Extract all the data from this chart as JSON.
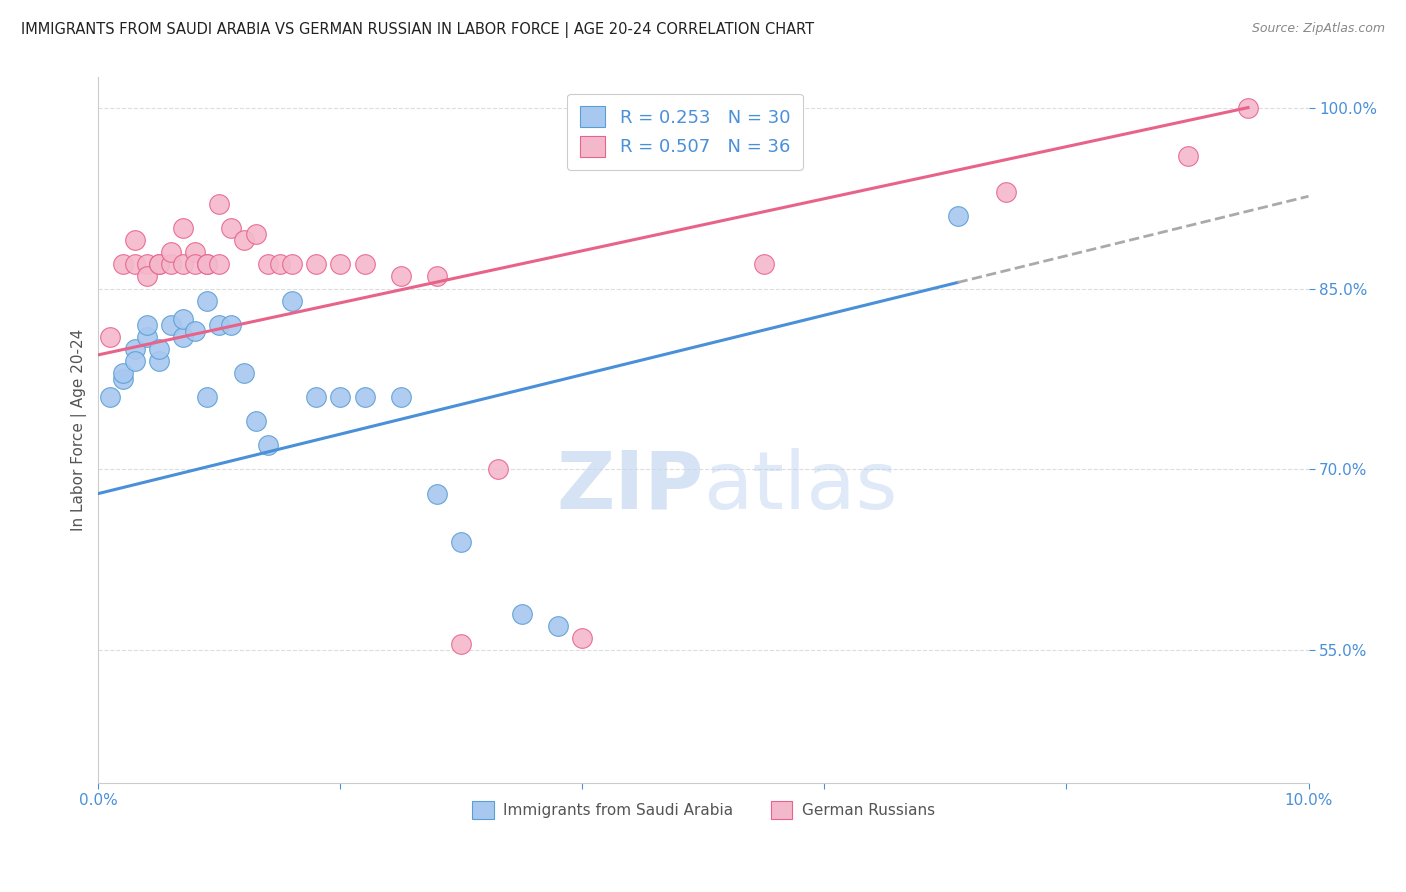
{
  "title": "IMMIGRANTS FROM SAUDI ARABIA VS GERMAN RUSSIAN IN LABOR FORCE | AGE 20-24 CORRELATION CHART",
  "source": "Source: ZipAtlas.com",
  "ylabel": "In Labor Force | Age 20-24",
  "legend_blue_r": "R = 0.253",
  "legend_blue_n": "N = 30",
  "legend_pink_r": "R = 0.507",
  "legend_pink_n": "N = 36",
  "legend_blue_label": "Immigrants from Saudi Arabia",
  "legend_pink_label": "German Russians",
  "xlim": [
    0.0,
    0.1
  ],
  "ylim": [
    0.44,
    1.025
  ],
  "xticks": [
    0.0,
    0.02,
    0.04,
    0.06,
    0.08,
    0.1
  ],
  "xtick_labels": [
    "0.0%",
    "",
    "",
    "",
    "",
    "10.0%"
  ],
  "yticks": [
    0.55,
    0.7,
    0.85,
    1.0
  ],
  "ytick_labels": [
    "55.0%",
    "70.0%",
    "85.0%",
    "100.0%"
  ],
  "blue_scatter_x": [
    0.001,
    0.002,
    0.002,
    0.003,
    0.003,
    0.004,
    0.004,
    0.005,
    0.005,
    0.006,
    0.007,
    0.007,
    0.008,
    0.009,
    0.009,
    0.01,
    0.011,
    0.012,
    0.013,
    0.014,
    0.016,
    0.018,
    0.02,
    0.022,
    0.025,
    0.028,
    0.03,
    0.035,
    0.038,
    0.071
  ],
  "blue_scatter_y": [
    0.76,
    0.775,
    0.78,
    0.8,
    0.79,
    0.81,
    0.82,
    0.79,
    0.8,
    0.82,
    0.81,
    0.825,
    0.815,
    0.76,
    0.84,
    0.82,
    0.82,
    0.78,
    0.74,
    0.72,
    0.84,
    0.76,
    0.76,
    0.76,
    0.76,
    0.68,
    0.64,
    0.58,
    0.57,
    0.91
  ],
  "pink_scatter_x": [
    0.001,
    0.002,
    0.003,
    0.003,
    0.004,
    0.004,
    0.005,
    0.005,
    0.006,
    0.006,
    0.007,
    0.007,
    0.008,
    0.008,
    0.009,
    0.009,
    0.01,
    0.01,
    0.011,
    0.012,
    0.013,
    0.014,
    0.015,
    0.016,
    0.018,
    0.02,
    0.022,
    0.025,
    0.028,
    0.03,
    0.033,
    0.04,
    0.055,
    0.075,
    0.09,
    0.095
  ],
  "pink_scatter_y": [
    0.81,
    0.87,
    0.87,
    0.89,
    0.87,
    0.86,
    0.87,
    0.87,
    0.87,
    0.88,
    0.87,
    0.9,
    0.88,
    0.87,
    0.87,
    0.87,
    0.92,
    0.87,
    0.9,
    0.89,
    0.895,
    0.87,
    0.87,
    0.87,
    0.87,
    0.87,
    0.87,
    0.86,
    0.86,
    0.555,
    0.7,
    0.56,
    0.87,
    0.93,
    0.96,
    1.0
  ],
  "blue_line_x0": 0.0,
  "blue_line_y0": 0.68,
  "blue_line_x1": 0.071,
  "blue_line_y1": 0.855,
  "blue_line_solid_end": 0.071,
  "blue_line_dash_end": 0.1,
  "pink_line_x0": 0.0,
  "pink_line_y0": 0.795,
  "pink_line_x1": 0.095,
  "pink_line_y1": 1.0,
  "blue_line_color": "#4a90d9",
  "pink_line_color": "#e8638a",
  "blue_dot_color": "#a8c8f0",
  "pink_dot_color": "#f4b8cc",
  "blue_dot_edge": "#5a9fd4",
  "pink_dot_edge": "#e8638a",
  "grid_color": "#dddddd",
  "title_color": "#222222",
  "axis_tick_color": "#4a90d9",
  "watermark_zip_color": "#c5d8f0",
  "watermark_atlas_color": "#b8d0ee"
}
